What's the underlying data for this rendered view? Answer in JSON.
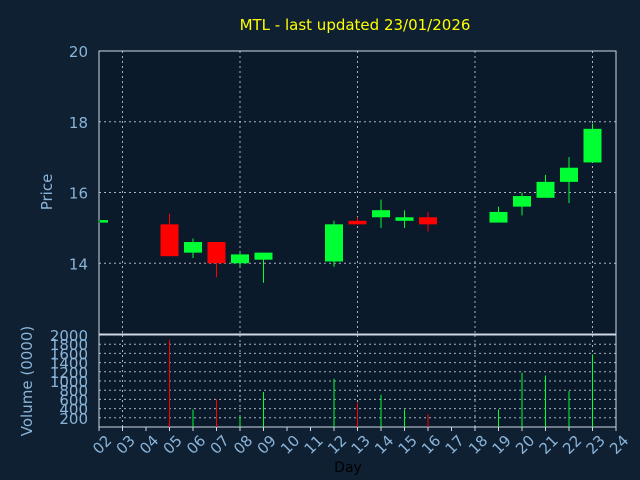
{
  "chart_data": {
    "type": "candlestick",
    "title": "MTL - last updated 23/01/2026",
    "xlabel": "Day",
    "price_panel": {
      "ylabel": "Price",
      "ylim": [
        12,
        20
      ],
      "yticks": [
        "14",
        "16",
        "18",
        "20"
      ]
    },
    "volume_panel": {
      "ylabel": "Volume (0000)",
      "ylim": [
        0,
        2000
      ],
      "yticks": [
        "200",
        "400",
        "600",
        "800",
        "1000",
        "1200",
        "1400",
        "1600",
        "1800",
        "2000"
      ]
    },
    "x_ticks": [
      "02",
      "03",
      "04",
      "05",
      "06",
      "07",
      "08",
      "09",
      "10",
      "11",
      "12",
      "13",
      "14",
      "15",
      "16",
      "17",
      "18",
      "19",
      "20",
      "21",
      "22",
      "23",
      "24"
    ],
    "candles": [
      {
        "day": "02",
        "open": 15.15,
        "close": 15.22,
        "high": 15.22,
        "low": 15.15,
        "volume": 0
      },
      {
        "day": "05",
        "open": 15.1,
        "close": 14.2,
        "high": 15.4,
        "low": 14.2,
        "volume": 1900
      },
      {
        "day": "06",
        "open": 14.3,
        "close": 14.6,
        "high": 14.7,
        "low": 14.15,
        "volume": 380
      },
      {
        "day": "07",
        "open": 14.6,
        "close": 14.0,
        "high": 14.6,
        "low": 13.6,
        "volume": 600
      },
      {
        "day": "08",
        "open": 14.0,
        "close": 14.25,
        "high": 14.3,
        "low": 13.9,
        "volume": 250
      },
      {
        "day": "09",
        "open": 14.1,
        "close": 14.3,
        "high": 14.3,
        "low": 13.45,
        "volume": 760
      },
      {
        "day": "12",
        "open": 14.05,
        "close": 15.1,
        "high": 15.2,
        "low": 13.9,
        "volume": 1050
      },
      {
        "day": "13",
        "open": 15.2,
        "close": 15.1,
        "high": 15.3,
        "low": 15.1,
        "volume": 530
      },
      {
        "day": "14",
        "open": 15.3,
        "close": 15.5,
        "high": 15.8,
        "low": 15.0,
        "volume": 700
      },
      {
        "day": "15",
        "open": 15.2,
        "close": 15.3,
        "high": 15.5,
        "low": 15.0,
        "volume": 380
      },
      {
        "day": "16",
        "open": 15.3,
        "close": 15.1,
        "high": 15.45,
        "low": 14.9,
        "volume": 280
      },
      {
        "day": "19",
        "open": 15.15,
        "close": 15.45,
        "high": 15.6,
        "low": 15.15,
        "volume": 380
      },
      {
        "day": "20",
        "open": 15.6,
        "close": 15.9,
        "high": 16.0,
        "low": 15.35,
        "volume": 1180
      },
      {
        "day": "21",
        "open": 15.85,
        "close": 16.3,
        "high": 16.5,
        "low": 15.85,
        "volume": 1120
      },
      {
        "day": "22",
        "open": 16.3,
        "close": 16.7,
        "high": 17.0,
        "low": 15.7,
        "volume": 780
      },
      {
        "day": "23",
        "open": 16.85,
        "close": 17.8,
        "high": 17.95,
        "low": 16.85,
        "volume": 1580
      }
    ],
    "colors": {
      "background": "#0f2033",
      "plot_background": "#0a1a2b",
      "up": "#00ff33",
      "down": "#ff0000",
      "grid": "#cfd8e3",
      "axis_text": "#8ab4d8",
      "title": "#ffff00",
      "xlabel": "#000000"
    },
    "grid": true
  }
}
